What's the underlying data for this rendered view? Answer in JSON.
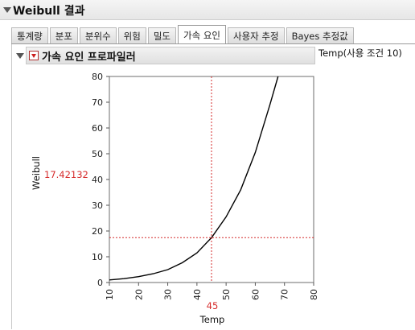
{
  "window": {
    "title": "Weibull 결과"
  },
  "tabs": [
    {
      "label": "통계량",
      "active": false
    },
    {
      "label": "분포",
      "active": false
    },
    {
      "label": "분위수",
      "active": false
    },
    {
      "label": "위험",
      "active": false
    },
    {
      "label": "밀도",
      "active": false
    },
    {
      "label": "가속 요인",
      "active": true
    },
    {
      "label": "사용자 추정",
      "active": false
    },
    {
      "label": "Bayes 추정값",
      "active": false
    }
  ],
  "section": {
    "title": "가속 요인 프로파일러",
    "condition_label": "Temp(사용 조건 10)"
  },
  "profiler": {
    "current_y": "17.42132",
    "current_x": "45"
  },
  "colors": {
    "crosshair": "#d62b2b",
    "curve": "#000000"
  },
  "chart_data": {
    "type": "line",
    "xlabel": "Temp",
    "ylabel": "Weibull",
    "xlim": [
      10,
      80
    ],
    "ylim": [
      0,
      80
    ],
    "x_ticks": [
      10,
      20,
      30,
      40,
      50,
      60,
      70,
      80
    ],
    "y_ticks": [
      0,
      10,
      20,
      30,
      40,
      50,
      60,
      70,
      80
    ],
    "grid": false,
    "series": [
      {
        "x": [
          10,
          15,
          20,
          25,
          30,
          35,
          40,
          45,
          50,
          55,
          60,
          65,
          67.8
        ],
        "values": [
          1.0,
          1.5,
          2.3,
          3.4,
          5.0,
          7.7,
          11.5,
          17.42,
          25.5,
          36.0,
          50.5,
          69.0,
          80.0
        ]
      }
    ],
    "crosshair": {
      "x": 45,
      "y": 17.42132
    }
  }
}
